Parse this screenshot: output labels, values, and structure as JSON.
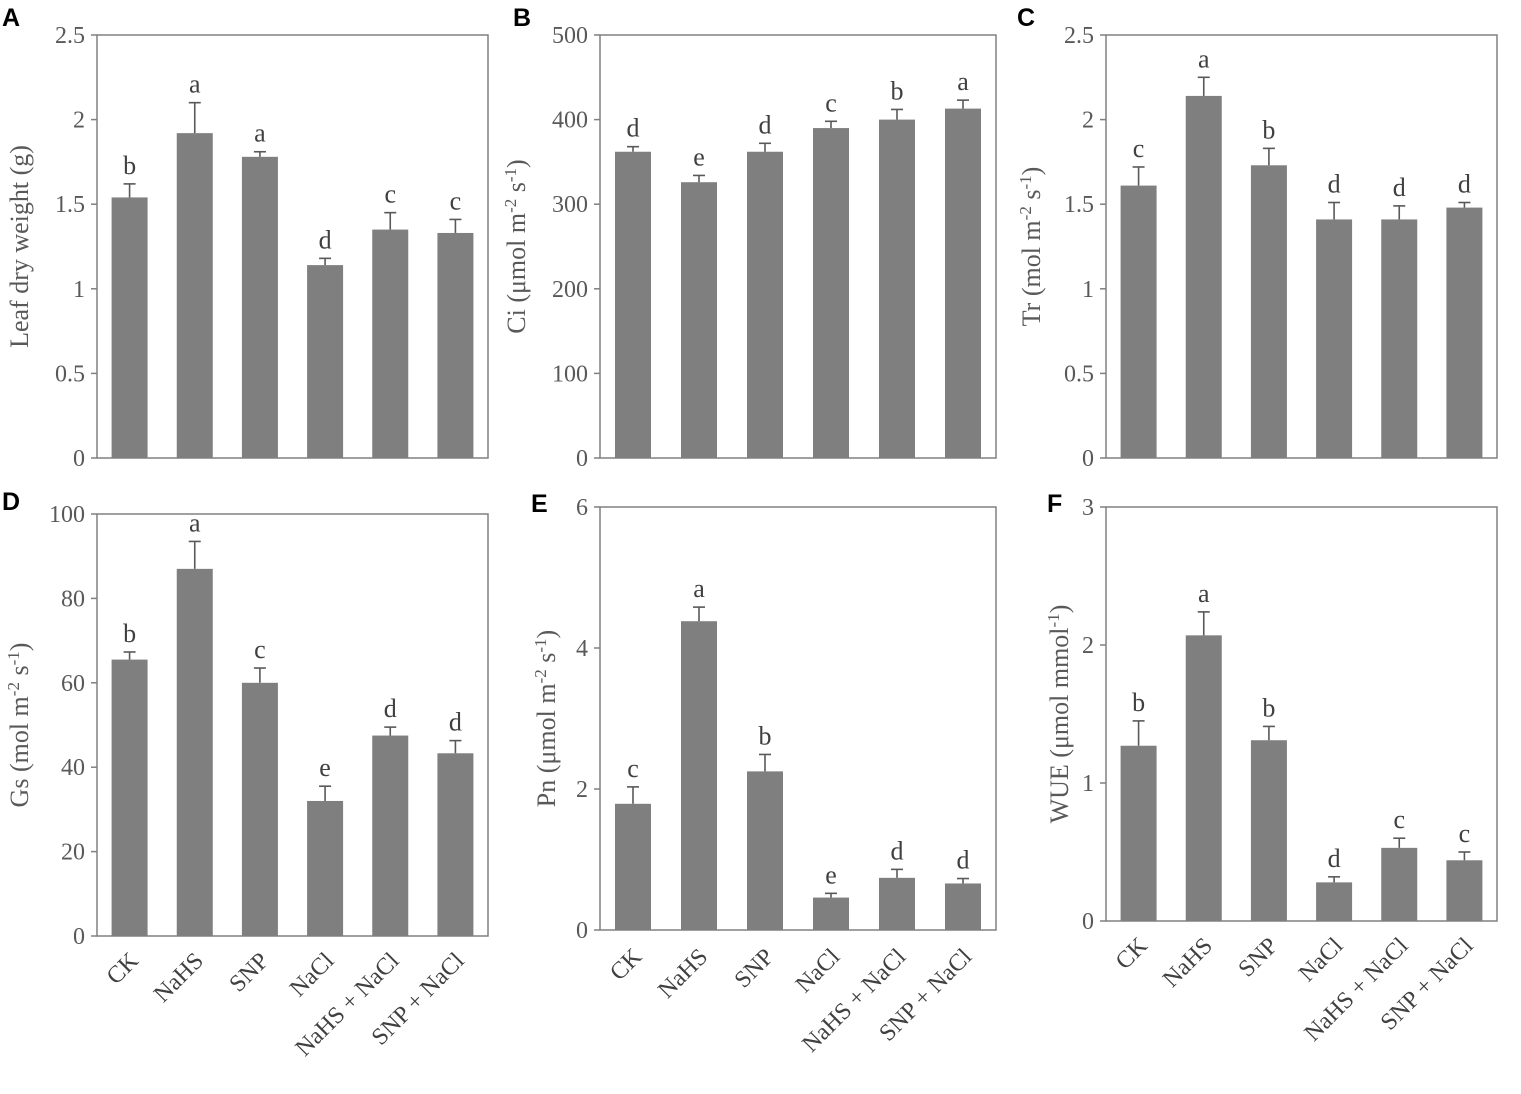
{
  "figure": {
    "categories": [
      "CK",
      "NaHS",
      "SNP",
      "NaCl",
      "NaHS + NaCl",
      "SNP + NaCl"
    ],
    "bar_color": "#7f7f7f",
    "axis_color": "#808080"
  },
  "chart_data": [
    {
      "panel": "A",
      "type": "bar",
      "ylabel": "Leaf dry weight (g)",
      "yticks": [
        "0",
        "0.5",
        "1",
        "1.5",
        "2",
        "2.5"
      ],
      "ylim": [
        0,
        2.5
      ],
      "values": [
        1.54,
        1.92,
        1.78,
        1.14,
        1.35,
        1.33
      ],
      "errors": [
        0.08,
        0.18,
        0.03,
        0.04,
        0.1,
        0.08
      ],
      "letters": [
        "b",
        "a",
        "a",
        "d",
        "c",
        "c"
      ]
    },
    {
      "panel": "B",
      "type": "bar",
      "ylabel": "Ci (μmol m⁻² s⁻¹)",
      "yticks": [
        "0",
        "100",
        "200",
        "300",
        "400",
        "500"
      ],
      "ylim": [
        0,
        500
      ],
      "values": [
        362,
        326,
        362,
        390,
        400,
        413
      ],
      "errors": [
        6,
        8,
        10,
        8,
        12,
        10
      ],
      "letters": [
        "d",
        "e",
        "d",
        "c",
        "b",
        "a"
      ]
    },
    {
      "panel": "C",
      "type": "bar",
      "ylabel": "Tr (mol m⁻² s⁻¹)",
      "yticks": [
        "0",
        "0.5",
        "1",
        "1.5",
        "2",
        "2.5"
      ],
      "ylim": [
        0,
        2.5
      ],
      "values": [
        1.61,
        2.14,
        1.73,
        1.41,
        1.41,
        1.48
      ],
      "errors": [
        0.11,
        0.11,
        0.1,
        0.1,
        0.08,
        0.03
      ],
      "letters": [
        "c",
        "a",
        "b",
        "d",
        "d",
        "d"
      ]
    },
    {
      "panel": "D",
      "type": "bar",
      "ylabel": "Gs (mol m⁻² s⁻¹)",
      "yticks": [
        "0",
        "20",
        "40",
        "60",
        "80",
        "100"
      ],
      "ylim": [
        0,
        100
      ],
      "values": [
        65.5,
        87,
        60,
        32,
        47.5,
        43.3
      ],
      "errors": [
        1.8,
        6.5,
        3.5,
        3.5,
        2.0,
        3.0
      ],
      "letters": [
        "b",
        "a",
        "c",
        "e",
        "d",
        "d"
      ]
    },
    {
      "panel": "E",
      "type": "bar",
      "ylabel": "Pn (μmol m⁻² s⁻¹)",
      "yticks": [
        "0",
        "2",
        "4",
        "6"
      ],
      "ylim": [
        0,
        6
      ],
      "values": [
        1.79,
        4.38,
        2.25,
        0.46,
        0.74,
        0.66
      ],
      "errors": [
        0.24,
        0.2,
        0.24,
        0.06,
        0.12,
        0.07
      ],
      "letters": [
        "c",
        "a",
        "b",
        "e",
        "d",
        "d"
      ]
    },
    {
      "panel": "F",
      "type": "bar",
      "ylabel": "WUE (μmol mmol⁻¹)",
      "yticks": [
        "0",
        "1",
        "2",
        "3"
      ],
      "ylim": [
        0,
        3
      ],
      "values": [
        1.27,
        2.07,
        1.31,
        0.28,
        0.53,
        0.44
      ],
      "errors": [
        0.18,
        0.17,
        0.1,
        0.04,
        0.07,
        0.06
      ],
      "letters": [
        "b",
        "a",
        "b",
        "d",
        "c",
        "c"
      ]
    }
  ]
}
